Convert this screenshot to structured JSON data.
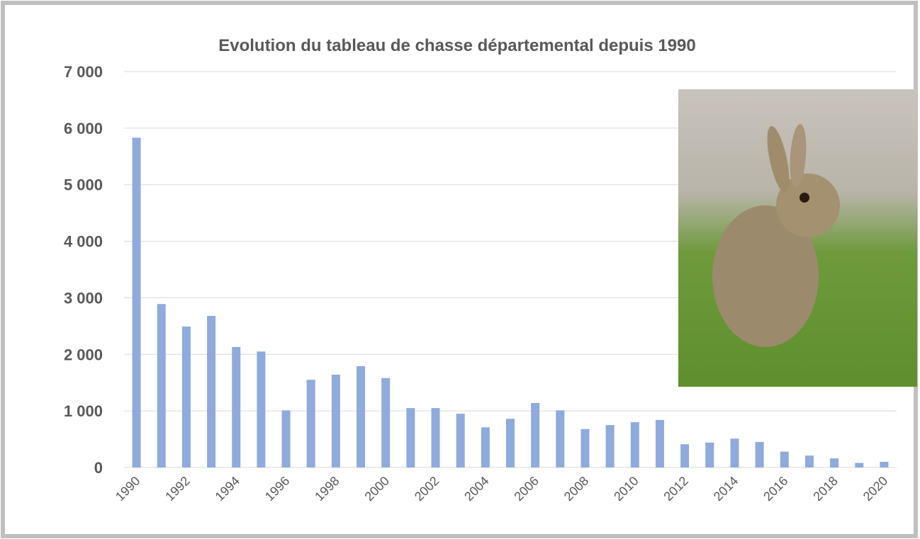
{
  "chart_data": {
    "type": "bar",
    "title": "Evolution du tableau de chasse départemental depuis 1990",
    "categories": [
      "1990",
      null,
      "1992",
      null,
      "1994",
      null,
      "1996",
      null,
      "1998",
      null,
      "2000",
      null,
      "2002",
      null,
      "2004",
      null,
      "2006",
      null,
      "2008",
      null,
      "2010",
      null,
      "2012",
      null,
      "2014",
      null,
      "2016",
      null,
      "2018",
      null,
      "2020"
    ],
    "values": [
      5830,
      2890,
      2490,
      2680,
      2130,
      2050,
      1010,
      1550,
      1640,
      1790,
      1580,
      1050,
      1050,
      950,
      710,
      860,
      1140,
      1010,
      680,
      750,
      800,
      840,
      410,
      440,
      510,
      450,
      280,
      210,
      160,
      80,
      100
    ],
    "color": "#8faadc",
    "ylim": [
      0,
      7000
    ],
    "yticks": [
      0,
      {
        "value": 1000,
        "label": "1 000"
      },
      {
        "value": 2000,
        "label": "2 000"
      },
      {
        "value": 3000,
        "label": "3 000"
      },
      {
        "value": 4000,
        "label": "4 000"
      },
      {
        "value": 5000,
        "label": "5 000"
      },
      {
        "value": 6000,
        "label": "6 000"
      },
      {
        "value": 7000,
        "label": "7 000"
      }
    ],
    "grid": true
  }
}
